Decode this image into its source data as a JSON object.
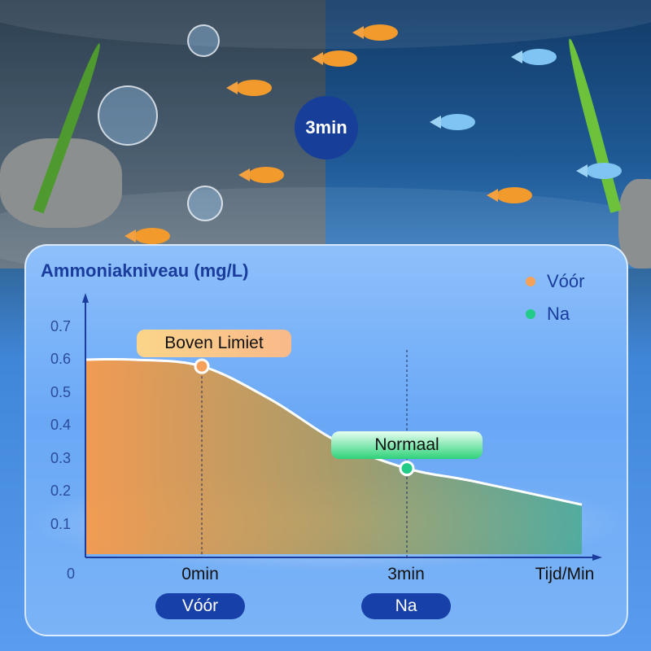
{
  "badge": {
    "label": "3min"
  },
  "chart_data": {
    "type": "area",
    "ylabel": "Ammoniakniveau (mg/L)",
    "xlabel": "Tijd/Min",
    "y_ticks": [
      "0",
      "0.1",
      "0.2",
      "0.3",
      "0.4",
      "0.5",
      "0.6",
      "0.7"
    ],
    "x_ticks": [
      "0min",
      "3min"
    ],
    "ylim": [
      0,
      0.8
    ],
    "x": [
      -1.7,
      -1.0,
      0,
      1,
      2,
      3,
      4,
      5.56
    ],
    "values": [
      0.6,
      0.6,
      0.58,
      0.48,
      0.35,
      0.27,
      0.23,
      0.16
    ],
    "markers": [
      {
        "x": 0,
        "y": 0.58,
        "series": "Vóór",
        "annotation": "Boven Limiet",
        "pill": "Vóór",
        "color": "#f6a15a"
      },
      {
        "x": 3,
        "y": 0.27,
        "series": "Na",
        "annotation": "Normaal",
        "pill": "Na",
        "color": "#22cc88"
      }
    ],
    "legend": [
      {
        "name": "Vóór",
        "color": "#f6a15a"
      },
      {
        "name": "Na",
        "color": "#22cc88"
      }
    ],
    "legend_position": "top-right",
    "grid": false
  }
}
